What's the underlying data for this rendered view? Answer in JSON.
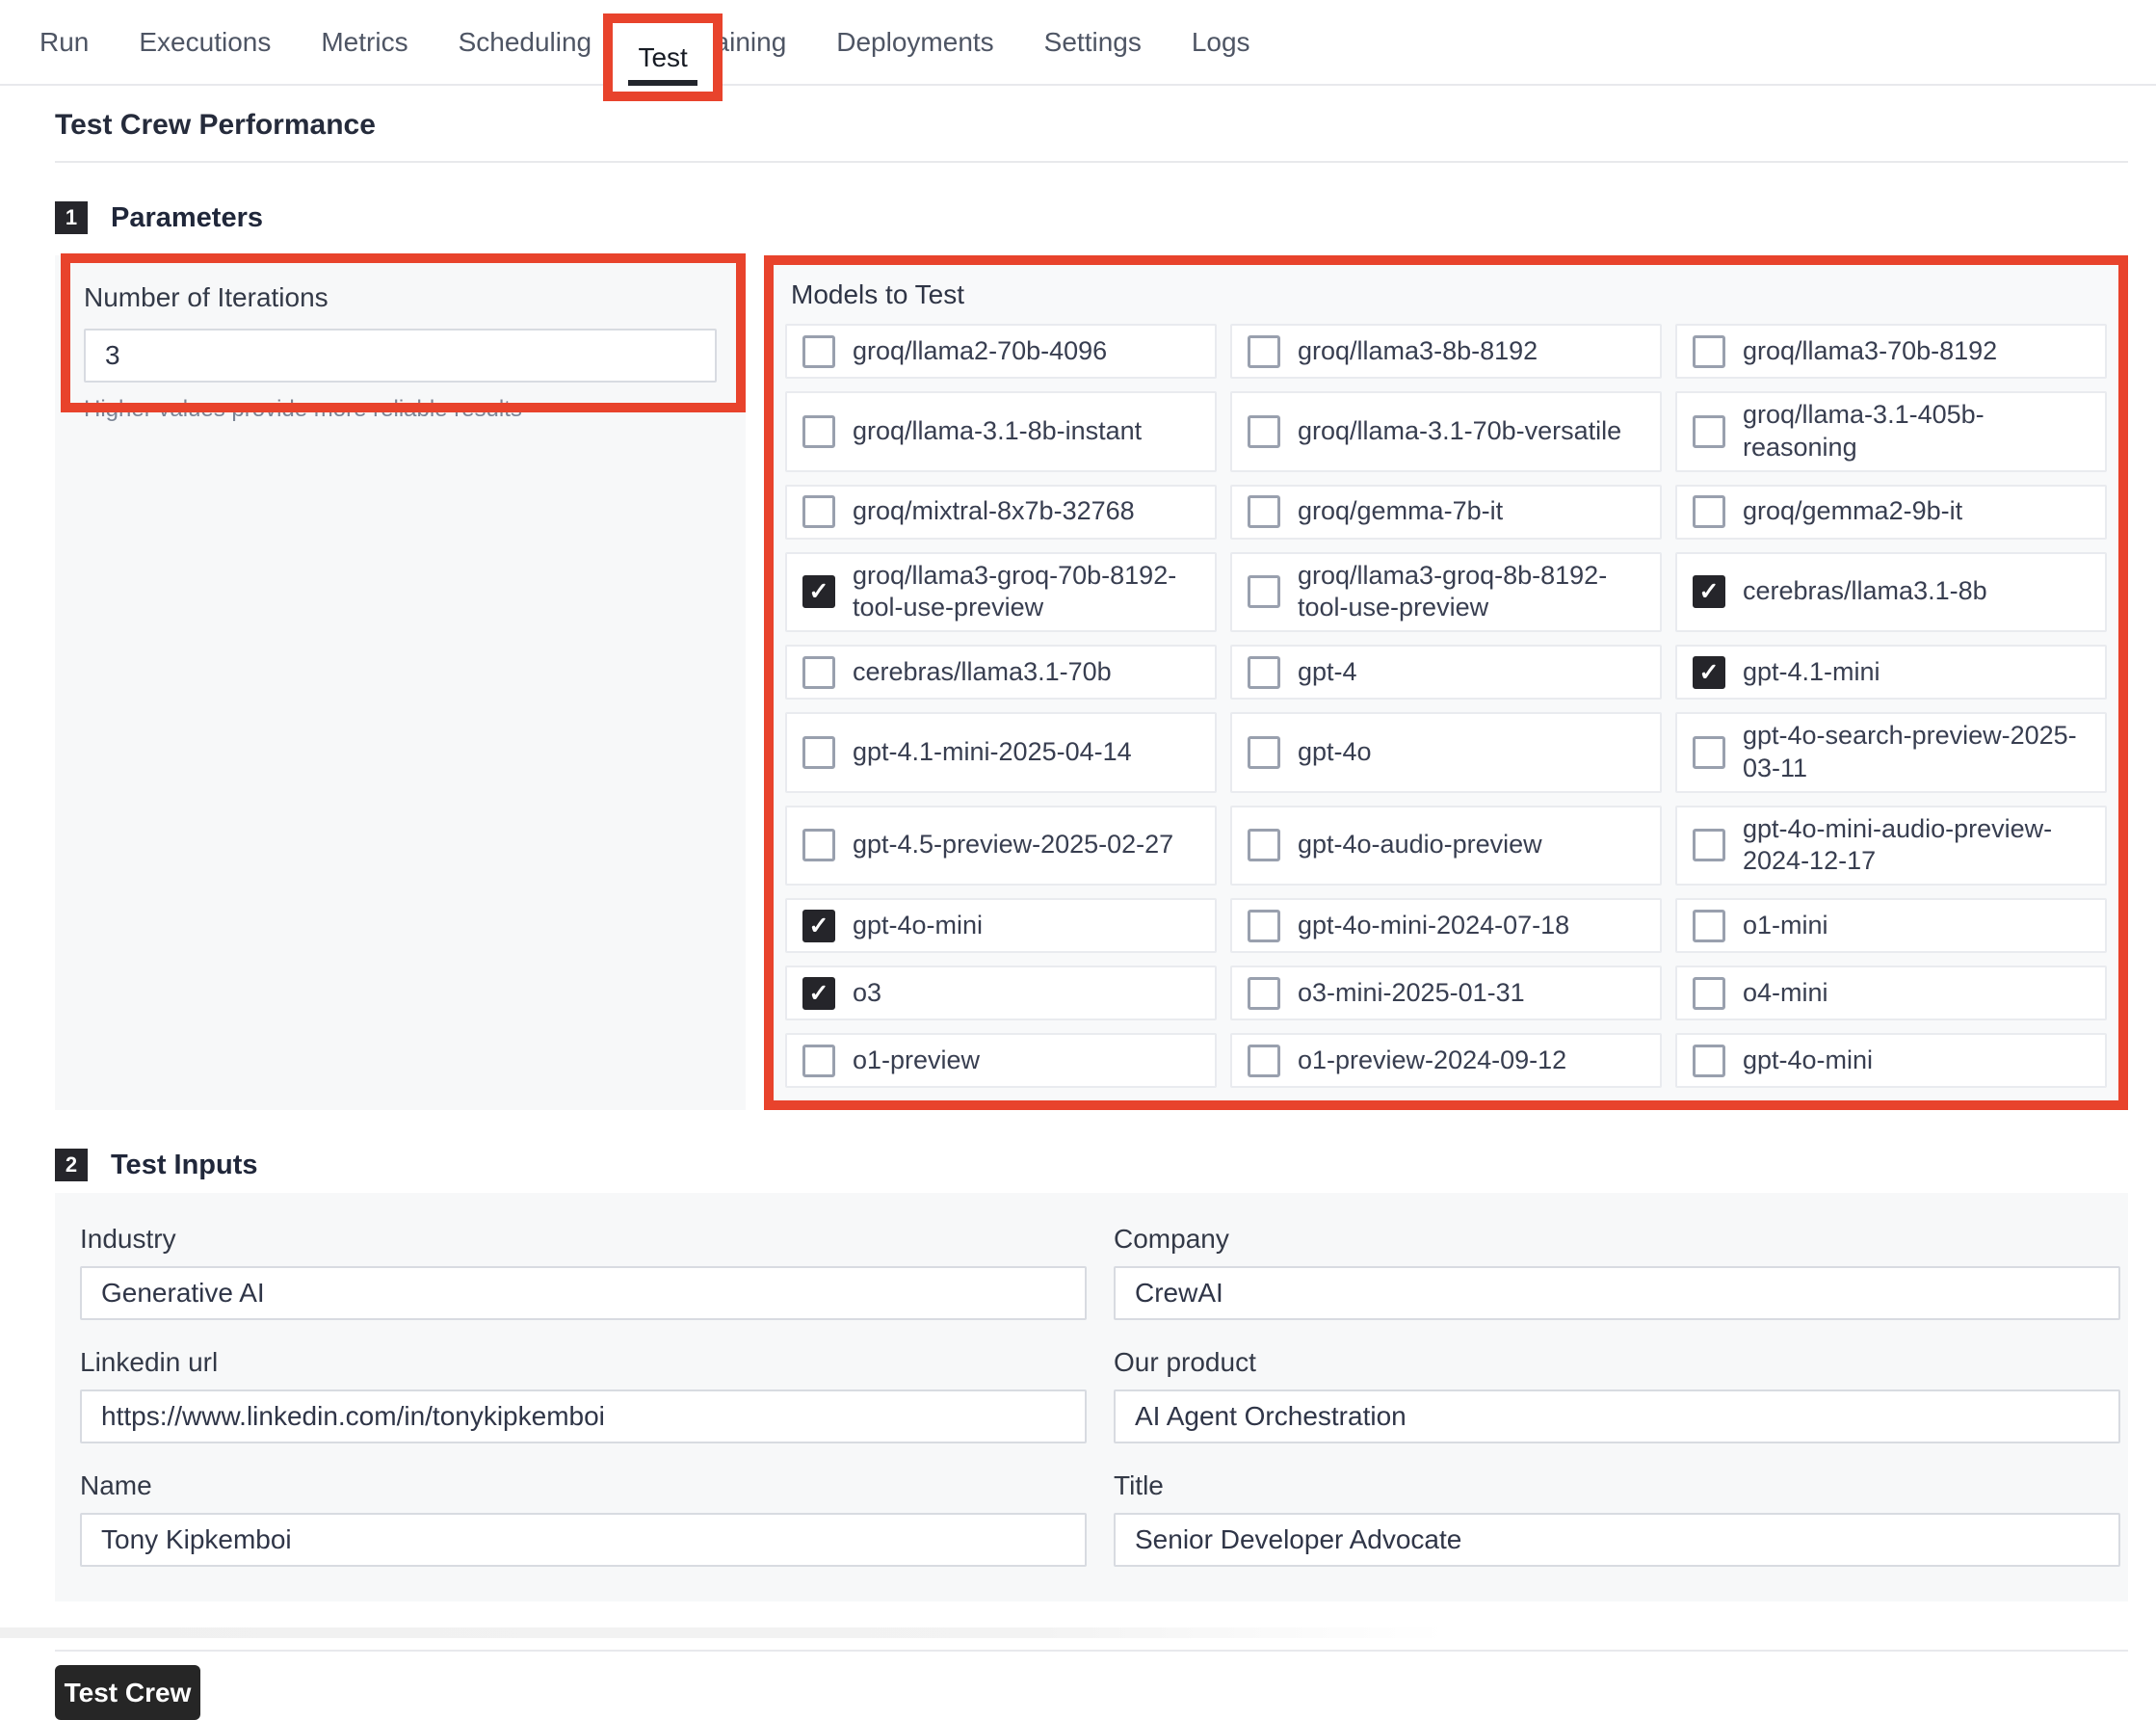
{
  "tabs": {
    "items": [
      {
        "label": "Run",
        "active": false
      },
      {
        "label": "Executions",
        "active": false
      },
      {
        "label": "Metrics",
        "active": false
      },
      {
        "label": "Scheduling",
        "active": false
      },
      {
        "label": "Test",
        "active": true
      },
      {
        "label": "Training",
        "active": false
      },
      {
        "label": "Deployments",
        "active": false
      },
      {
        "label": "Settings",
        "active": false
      },
      {
        "label": "Logs",
        "active": false
      }
    ]
  },
  "page": {
    "title": "Test Crew Performance"
  },
  "parameters": {
    "badge": "1",
    "title": "Parameters",
    "iterations": {
      "label": "Number of Iterations",
      "value": "3",
      "helper": "Higher values provide more reliable results"
    },
    "models": {
      "title": "Models to Test",
      "items": [
        {
          "label": "groq/llama2-70b-4096",
          "checked": false
        },
        {
          "label": "groq/llama3-8b-8192",
          "checked": false
        },
        {
          "label": "groq/llama3-70b-8192",
          "checked": false
        },
        {
          "label": "groq/llama-3.1-8b-instant",
          "checked": false
        },
        {
          "label": "groq/llama-3.1-70b-versatile",
          "checked": false
        },
        {
          "label": "groq/llama-3.1-405b-reasoning",
          "checked": false
        },
        {
          "label": "groq/mixtral-8x7b-32768",
          "checked": false
        },
        {
          "label": "groq/gemma-7b-it",
          "checked": false
        },
        {
          "label": "groq/gemma2-9b-it",
          "checked": false
        },
        {
          "label": "groq/llama3-groq-70b-8192-tool-use-preview",
          "checked": true
        },
        {
          "label": "groq/llama3-groq-8b-8192-tool-use-preview",
          "checked": false
        },
        {
          "label": "cerebras/llama3.1-8b",
          "checked": true
        },
        {
          "label": "cerebras/llama3.1-70b",
          "checked": false
        },
        {
          "label": "gpt-4",
          "checked": false
        },
        {
          "label": "gpt-4.1-mini",
          "checked": true
        },
        {
          "label": "gpt-4.1-mini-2025-04-14",
          "checked": false
        },
        {
          "label": "gpt-4o",
          "checked": false
        },
        {
          "label": "gpt-4o-search-preview-2025-03-11",
          "checked": false
        },
        {
          "label": "gpt-4.5-preview-2025-02-27",
          "checked": false
        },
        {
          "label": "gpt-4o-audio-preview",
          "checked": false
        },
        {
          "label": "gpt-4o-mini-audio-preview-2024-12-17",
          "checked": false
        },
        {
          "label": "gpt-4o-mini",
          "checked": true
        },
        {
          "label": "gpt-4o-mini-2024-07-18",
          "checked": false
        },
        {
          "label": "o1-mini",
          "checked": false
        },
        {
          "label": "o3",
          "checked": true
        },
        {
          "label": "o3-mini-2025-01-31",
          "checked": false
        },
        {
          "label": "o4-mini",
          "checked": false
        },
        {
          "label": "o1-preview",
          "checked": false
        },
        {
          "label": "o1-preview-2024-09-12",
          "checked": false
        },
        {
          "label": "gpt-4o-mini",
          "checked": false
        }
      ]
    }
  },
  "test_inputs": {
    "badge": "2",
    "title": "Test Inputs",
    "fields": [
      {
        "label": "Industry",
        "value": "Generative AI"
      },
      {
        "label": "Company",
        "value": "CrewAI"
      },
      {
        "label": "Linkedin url",
        "value": "https://www.linkedin.com/in/tonykipkemboi"
      },
      {
        "label": "Our product",
        "value": "AI Agent Orchestration"
      },
      {
        "label": "Name",
        "value": "Tony Kipkemboi"
      },
      {
        "label": "Title",
        "value": "Senior Developer Advocate"
      }
    ]
  },
  "actions": {
    "test_crew_label": "Test Crew"
  },
  "colors": {
    "annotation_red": "#e8432c",
    "badge_dark": "#26262b",
    "button_dark": "#262626",
    "checkbox_checked": "#25252a"
  },
  "icons": {
    "checkmark": "✓"
  }
}
